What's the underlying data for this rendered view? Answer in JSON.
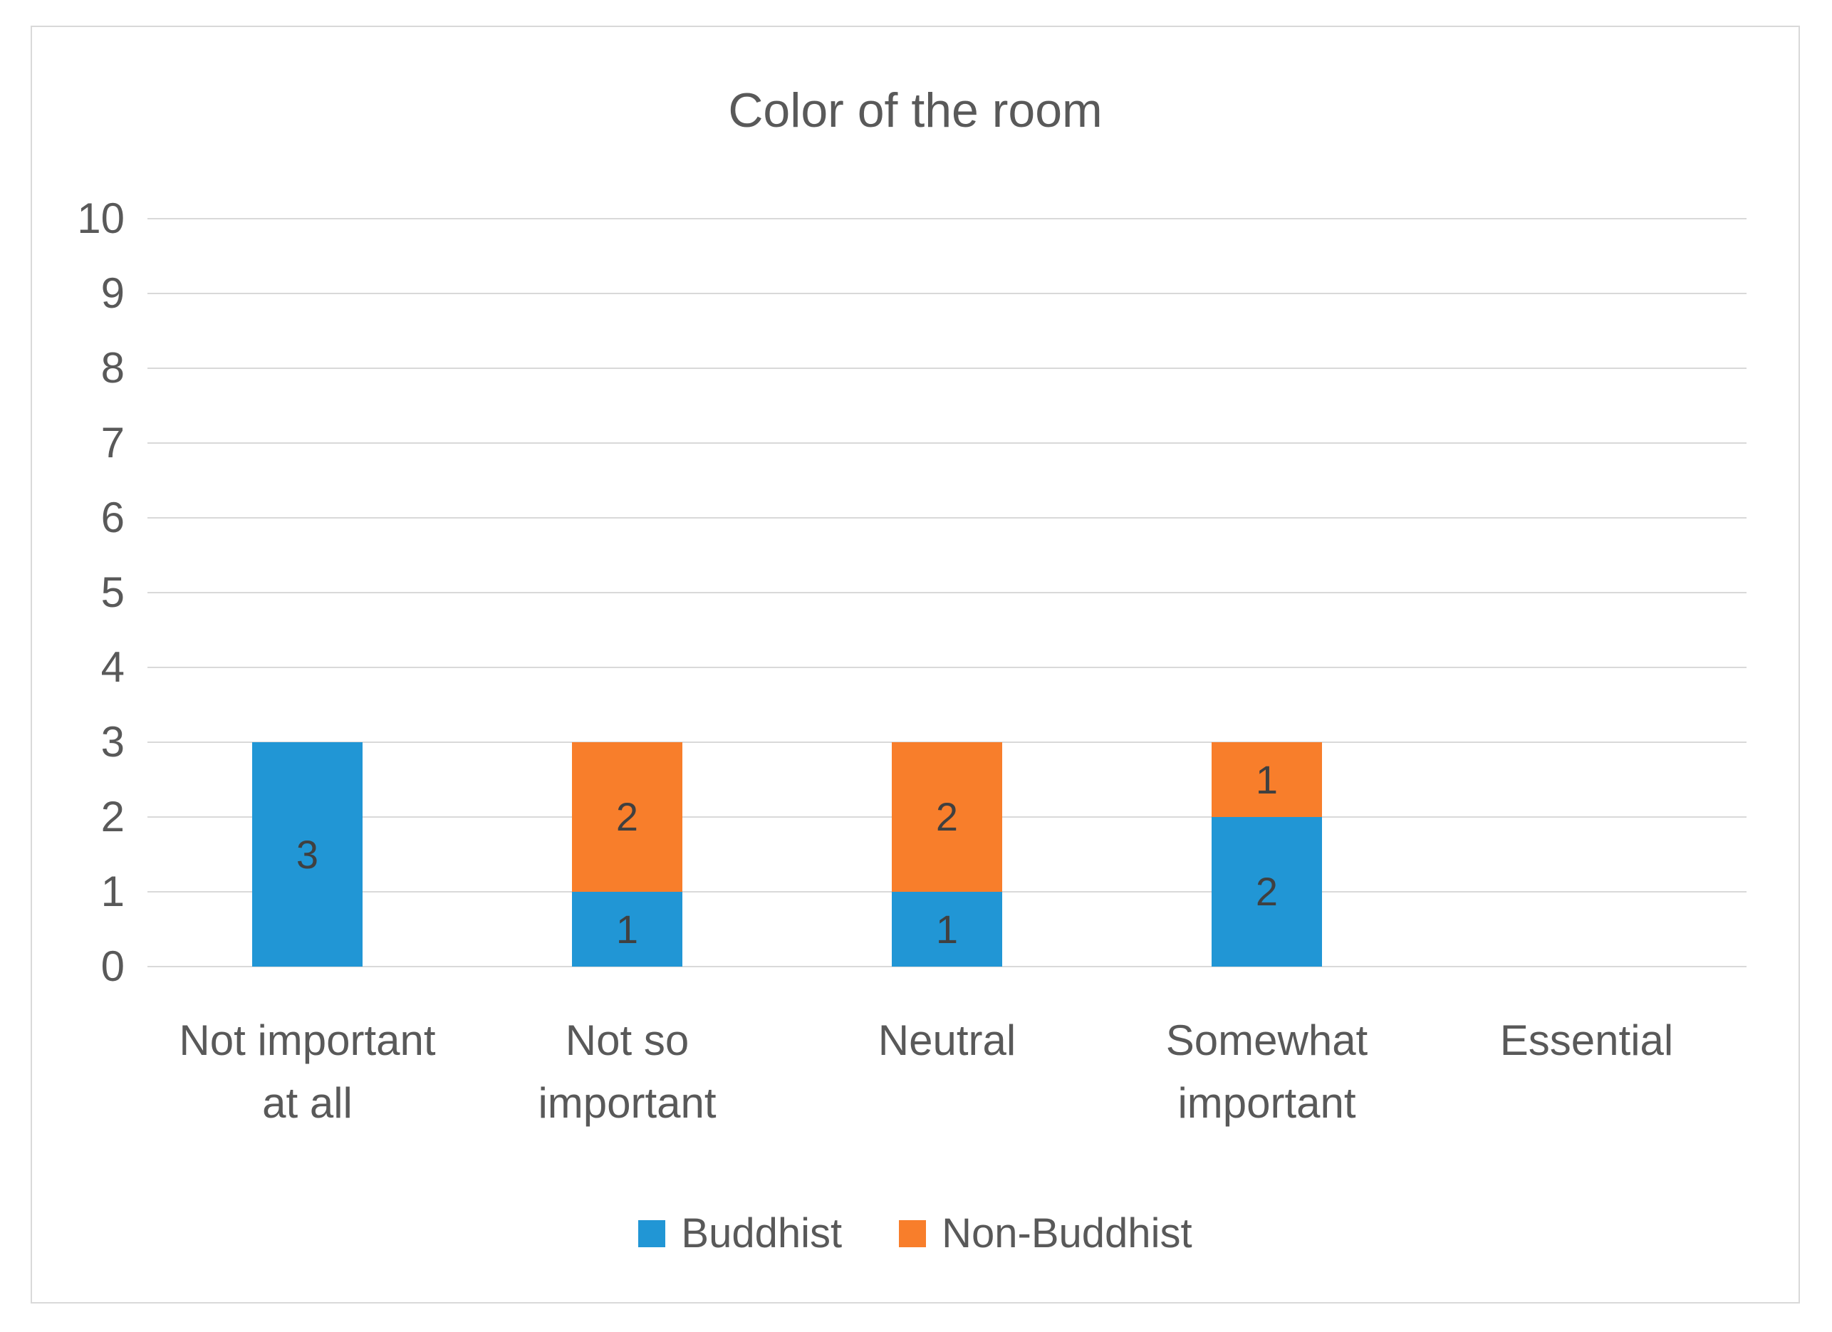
{
  "chart_data": {
    "type": "bar",
    "stacked": true,
    "title": "Color of the room",
    "categories": [
      "Not important at all",
      "Not so important",
      "Neutral",
      "Somewhat important",
      "Essential"
    ],
    "categories_wrapped": [
      "Not important\nat all",
      "Not so\nimportant",
      "Neutral",
      "Somewhat\nimportant",
      "Essential"
    ],
    "series": [
      {
        "name": "Buddhist",
        "color": "#2196D5",
        "values": [
          3,
          1,
          1,
          2,
          0
        ]
      },
      {
        "name": "Non-Buddhist",
        "color": "#F87E2B",
        "values": [
          0,
          2,
          2,
          1,
          0
        ]
      }
    ],
    "xlabel": "",
    "ylabel": "",
    "ylim": [
      0,
      10
    ],
    "y_ticks": [
      0,
      1,
      2,
      3,
      4,
      5,
      6,
      7,
      8,
      9,
      10
    ],
    "grid": true,
    "legend_position": "bottom",
    "data_labels": true,
    "grid_color": "#D9D9D9",
    "border_color": "#D9D9D9",
    "axis_text_color": "#595959",
    "data_label_color": "#404040"
  }
}
